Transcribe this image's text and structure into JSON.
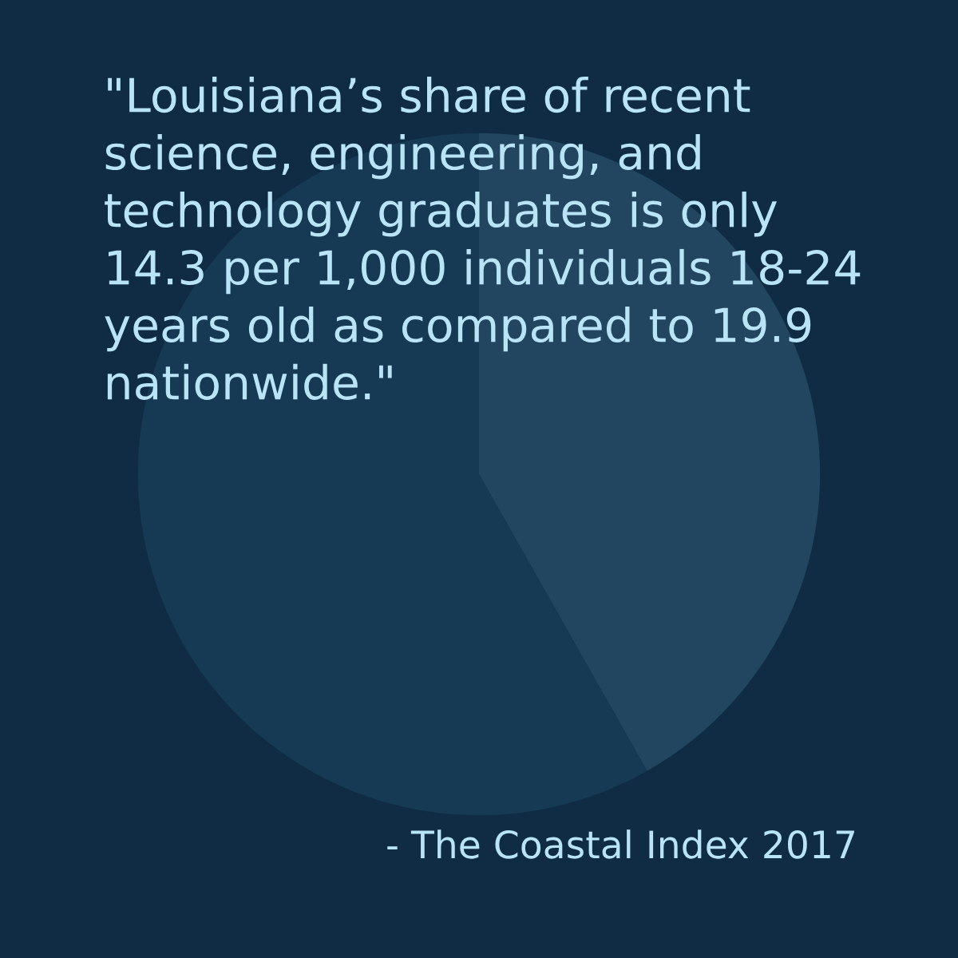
{
  "chart_data": {
    "type": "pie",
    "categories": [
      null,
      null
    ],
    "values": [
      41.8,
      58.2
    ],
    "colors": [
      "#22465f",
      "#173a54"
    ],
    "annotations": [
      "\"Louisiana’s share of recent science, engineering, and technology graduates is only 14.3 per 1,000 individuals 18-24 years old as compared to 19.9 nationwide.\"",
      "- The Coastal Index 2017"
    ]
  }
}
